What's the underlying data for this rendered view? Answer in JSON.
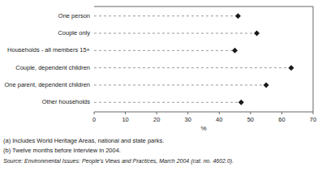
{
  "chart_data": {
    "type": "lollipop",
    "orientation": "horizontal",
    "categories": [
      "Other households",
      "One parent, dependent children",
      "Couple, dependent children",
      "Households - all members 15+",
      "Couple only",
      "One person"
    ],
    "values": [
      47,
      55,
      63,
      45,
      52,
      46
    ],
    "xlim": [
      0,
      70
    ],
    "xticks": [
      0,
      10,
      20,
      30,
      40,
      50,
      60,
      70
    ],
    "xlabel": "%",
    "annotations": [
      "(a) Includes World Heritage Areas, national and state parks.",
      "(b) Twelve months before interview in 2004.",
      "Source: Environmental Issues: People's Views and Practices, March 2004 (cat.  no.  4602.0)."
    ],
    "color": "#1a1a1a",
    "marker": "diamond",
    "line_style": "dashed",
    "grid": false
  }
}
